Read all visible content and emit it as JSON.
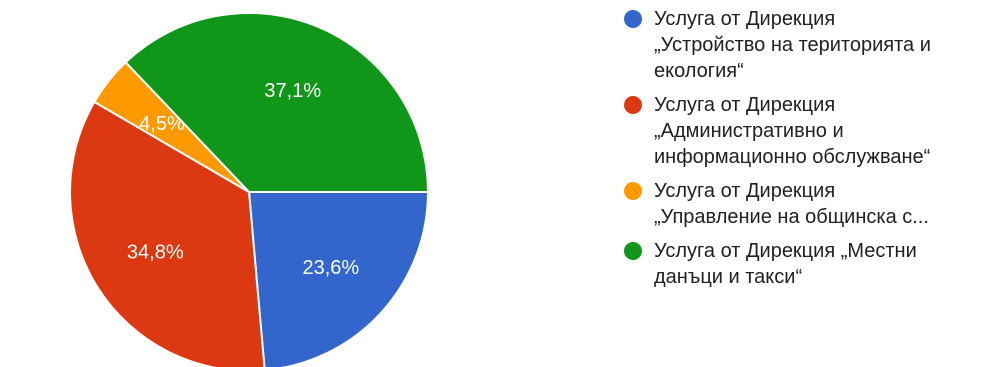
{
  "chart_data": {
    "type": "pie",
    "slices": [
      {
        "label": [
          "Услуга от Дирекция",
          "„Устройство на територията и",
          "екология“"
        ],
        "value": 23.6,
        "display": "23,6%",
        "color": "#3366cc"
      },
      {
        "label": [
          "Услуга от Дирекция",
          "„Административно и",
          "информационно обслужване“"
        ],
        "value": 34.8,
        "display": "34,8%",
        "color": "#dc3912"
      },
      {
        "label": [
          "Услуга от Дирекция",
          "„Управление на общинска с..."
        ],
        "value": 4.5,
        "display": "4,5%",
        "color": "#ff9900"
      },
      {
        "label": [
          "Услуга от Дирекция „Местни",
          "данъци и такси“"
        ],
        "value": 37.1,
        "display": "37,1%",
        "color": "#109618"
      }
    ],
    "legend_position": "right"
  }
}
